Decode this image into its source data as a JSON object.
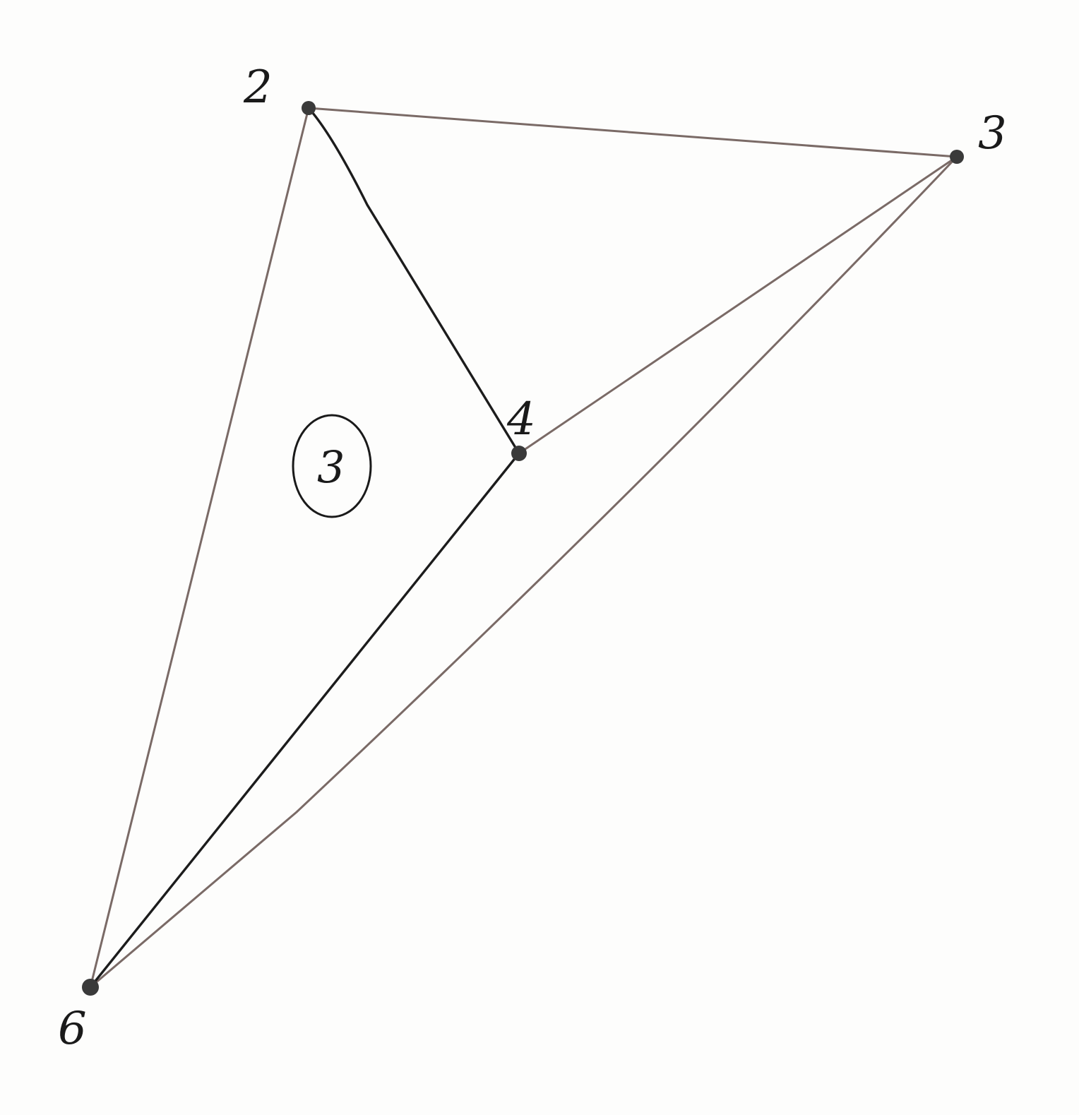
{
  "diagram": {
    "type": "planar-graph-hand-drawn",
    "vertices": [
      {
        "id": "v2",
        "label": "2"
      },
      {
        "id": "v3",
        "label": "3"
      },
      {
        "id": "v4",
        "label": "4"
      },
      {
        "id": "v6",
        "label": "6"
      }
    ],
    "edges": [
      {
        "from": "2",
        "to": "3"
      },
      {
        "from": "2",
        "to": "6"
      },
      {
        "from": "2",
        "to": "4"
      },
      {
        "from": "3",
        "to": "4"
      },
      {
        "from": "3",
        "to": "6"
      },
      {
        "from": "4",
        "to": "6"
      }
    ],
    "region_label": "3",
    "colors": {
      "line_light": "#7a6a66",
      "line_dark": "#1c1c1c",
      "vertex": "#3a3a3a",
      "background": "#fdfdfc"
    }
  }
}
